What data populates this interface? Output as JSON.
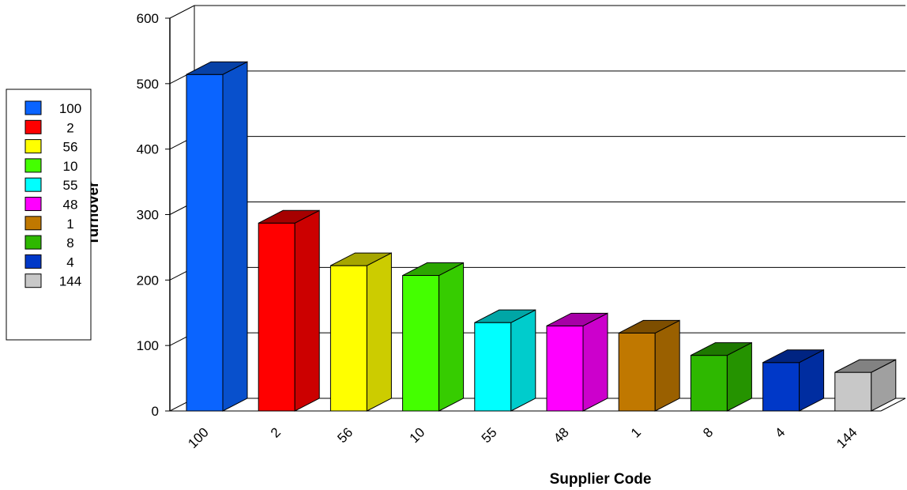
{
  "chart_data": {
    "type": "bar",
    "style": "3d",
    "categories": [
      "100",
      "2",
      "56",
      "10",
      "55",
      "48",
      "1",
      "8",
      "4",
      "144"
    ],
    "values": [
      514,
      287,
      222,
      207,
      135,
      130,
      119,
      85,
      74,
      59
    ],
    "xlabel": "Supplier Code",
    "ylabel": "Turnover",
    "ylim": [
      0,
      600
    ],
    "yticks": [
      0,
      100,
      200,
      300,
      400,
      500,
      600
    ],
    "grid": true,
    "legend_position": "left",
    "legend": [
      "100",
      "2",
      "56",
      "10",
      "55",
      "48",
      "1",
      "8",
      "4",
      "144"
    ],
    "colors": [
      "#0a64ff",
      "#ff0000",
      "#ffff00",
      "#44ff00",
      "#00ffff",
      "#ff00ff",
      "#c07800",
      "#2eb800",
      "#0038c8",
      "#c8c8c8"
    ]
  }
}
